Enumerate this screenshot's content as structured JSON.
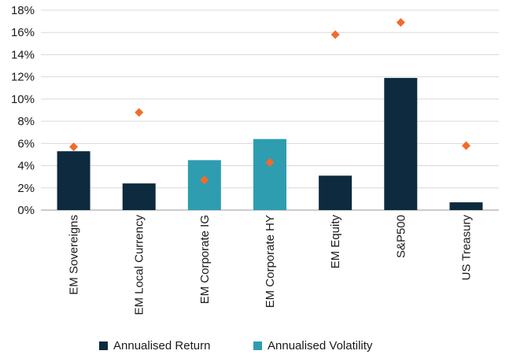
{
  "chart_data": {
    "type": "bar",
    "categories": [
      "EM Sovereigns",
      "EM Local Currency",
      "EM Corporate IG",
      "EM Corporate HY",
      "EM Equity",
      "S&P500",
      "US Treasury"
    ],
    "series": [
      {
        "name": "Annualised Return",
        "kind": "bar",
        "values": [
          5.3,
          2.4,
          4.5,
          6.4,
          3.1,
          11.9,
          0.7
        ],
        "bar_colors": [
          "#0d2a3e",
          "#0d2a3e",
          "#2e9db0",
          "#2e9db0",
          "#0d2a3e",
          "#0d2a3e",
          "#0d2a3e"
        ]
      },
      {
        "name": "",
        "kind": "marker",
        "marker": "diamond",
        "color": "#f26b2a",
        "values": [
          5.7,
          8.8,
          2.7,
          4.3,
          15.8,
          16.9,
          5.8
        ]
      }
    ],
    "legend": [
      {
        "label": "Annualised Return",
        "color": "#0d2a3e"
      },
      {
        "label": "Annualised Volatility",
        "color": "#2e9db0"
      }
    ],
    "legend_position": "bottom",
    "ylim": [
      0,
      18
    ],
    "yticks": [
      0,
      2,
      4,
      6,
      8,
      10,
      12,
      14,
      16,
      18
    ],
    "ytick_suffix": "%",
    "grid": true,
    "title": "",
    "xlabel": "",
    "ylabel": ""
  }
}
